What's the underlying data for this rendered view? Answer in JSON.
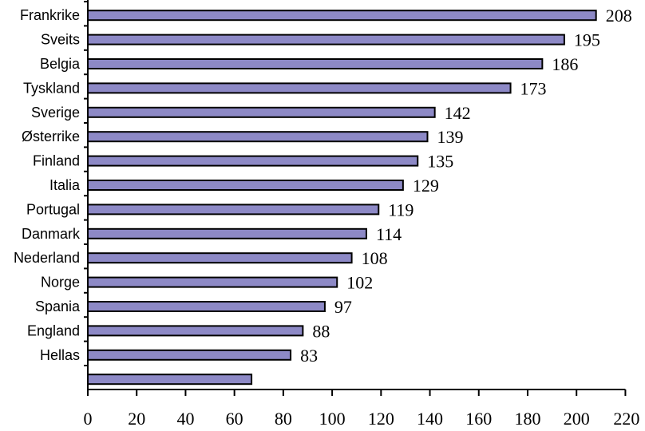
{
  "chart_data": {
    "type": "bar",
    "orientation": "horizontal",
    "categories": [
      "Frankrike",
      "Sveits",
      "Belgia",
      "Tyskland",
      "Sverige",
      "Østerrike",
      "Finland",
      "Italia",
      "Portugal",
      "Danmark",
      "Nederland",
      "Norge",
      "Spania",
      "England",
      "Hellas",
      ""
    ],
    "values": [
      208,
      195,
      186,
      173,
      142,
      139,
      135,
      129,
      119,
      114,
      108,
      102,
      97,
      88,
      83,
      67
    ],
    "data_labels": [
      "208",
      "195",
      "186",
      "173",
      "142",
      "139",
      "135",
      "129",
      "119",
      "114",
      "108",
      "102",
      "97",
      "88",
      "83",
      ""
    ],
    "xlim": [
      0,
      220
    ],
    "xticks": [
      0,
      20,
      40,
      60,
      80,
      100,
      120,
      140,
      160,
      180,
      200,
      220
    ],
    "title": "",
    "xlabel": "",
    "ylabel": "",
    "grid": false,
    "legend": "none",
    "bar_color": "#8d89c6"
  }
}
